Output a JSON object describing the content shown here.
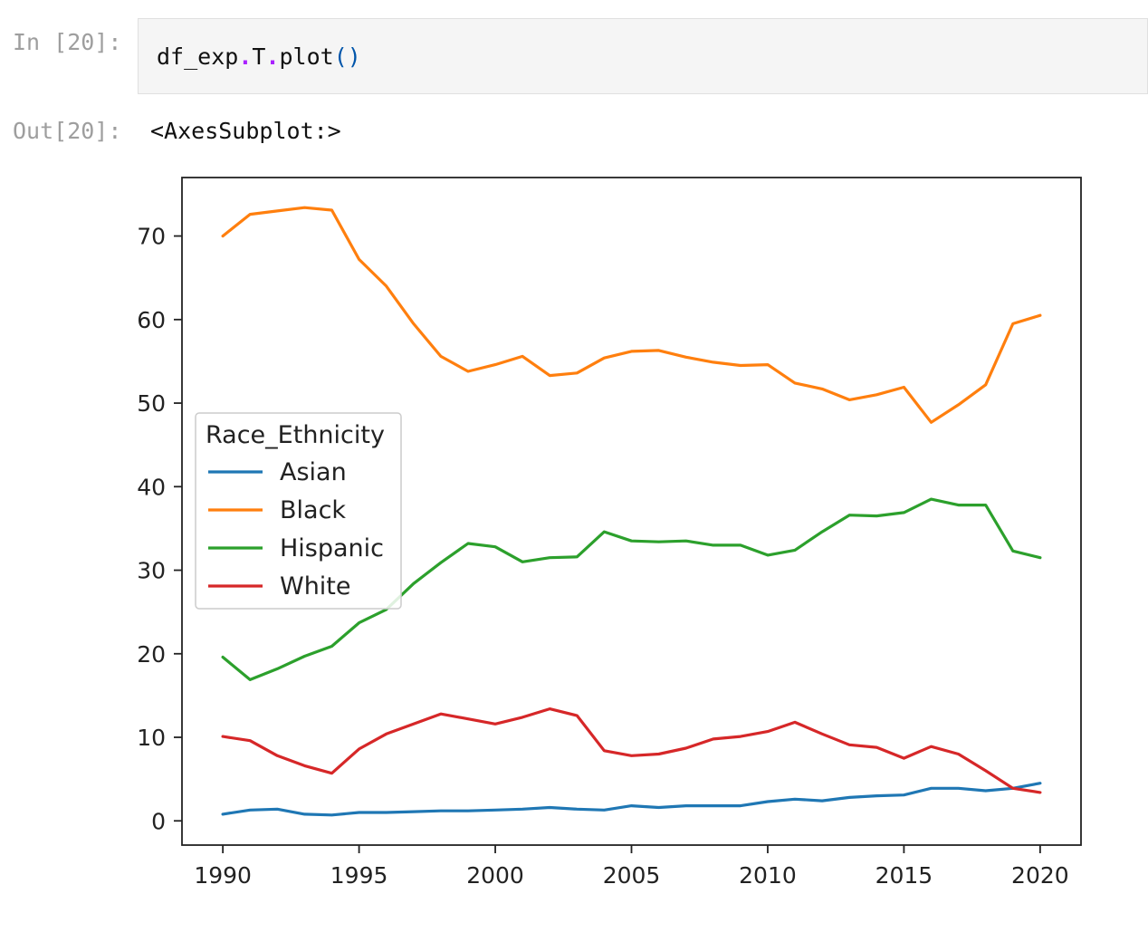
{
  "notebook": {
    "in_prompt": "In [20]:",
    "out_prompt": "Out[20]:",
    "code": {
      "p1": "df_exp",
      "d1": ".",
      "p2": "T",
      "d2": ".",
      "p3": "plot",
      "p4": "()"
    },
    "output_text": "<AxesSubplot:>"
  },
  "chart_data": {
    "type": "line",
    "x": [
      1990,
      1991,
      1992,
      1993,
      1994,
      1995,
      1996,
      1997,
      1998,
      1999,
      2000,
      2001,
      2002,
      2003,
      2004,
      2005,
      2006,
      2007,
      2008,
      2009,
      2010,
      2011,
      2012,
      2013,
      2014,
      2015,
      2016,
      2017,
      2018,
      2019,
      2020
    ],
    "series": [
      {
        "name": "Asian",
        "color": "#1f77b4",
        "values": [
          0.8,
          1.3,
          1.4,
          0.8,
          0.7,
          1.0,
          1.0,
          1.1,
          1.2,
          1.2,
          1.3,
          1.4,
          1.6,
          1.4,
          1.3,
          1.8,
          1.6,
          1.8,
          1.8,
          1.8,
          2.3,
          2.6,
          2.4,
          2.8,
          3.0,
          3.1,
          3.9,
          3.9,
          3.6,
          3.9,
          4.5
        ]
      },
      {
        "name": "Black",
        "color": "#ff7f0e",
        "values": [
          70.0,
          72.6,
          73.0,
          73.4,
          73.1,
          67.2,
          64.0,
          59.5,
          55.6,
          53.8,
          54.6,
          55.6,
          53.3,
          53.6,
          55.4,
          56.2,
          56.3,
          55.5,
          54.9,
          54.5,
          54.6,
          52.4,
          51.7,
          50.4,
          51.0,
          51.9,
          47.7,
          49.8,
          52.2,
          59.5,
          60.5
        ]
      },
      {
        "name": "Hispanic",
        "color": "#2ca02c",
        "values": [
          19.6,
          16.9,
          18.2,
          19.7,
          20.9,
          23.7,
          25.3,
          28.4,
          30.9,
          33.2,
          32.8,
          31.0,
          31.5,
          31.6,
          34.6,
          33.5,
          33.4,
          33.5,
          33.0,
          33.0,
          31.8,
          32.4,
          34.6,
          36.6,
          36.5,
          36.9,
          38.5,
          37.8,
          37.8,
          32.3,
          31.5
        ]
      },
      {
        "name": "White",
        "color": "#d62728",
        "values": [
          10.1,
          9.6,
          7.8,
          6.6,
          5.7,
          8.6,
          10.4,
          11.6,
          12.8,
          12.2,
          11.6,
          12.4,
          13.4,
          12.6,
          8.4,
          7.8,
          8.0,
          8.7,
          9.8,
          10.1,
          10.7,
          11.8,
          10.4,
          9.1,
          8.8,
          7.5,
          8.9,
          8.0,
          6.0,
          3.9,
          3.4
        ]
      }
    ],
    "xticks": [
      1990,
      1995,
      2000,
      2005,
      2010,
      2015,
      2020
    ],
    "yticks": [
      0,
      10,
      20,
      30,
      40,
      50,
      60,
      70
    ],
    "xlim": [
      1988.5,
      2021.5
    ],
    "ylim": [
      -2.9,
      77.0
    ],
    "legend": {
      "title": "Race_Ethnicity",
      "placement": "center-left"
    },
    "grid": false
  }
}
